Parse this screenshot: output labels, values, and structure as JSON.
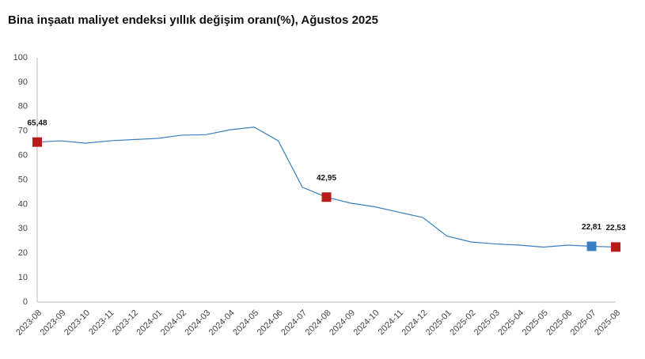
{
  "chart_data": {
    "type": "line",
    "title": "Bina inşaatı maliyet endeksi yıllık değişim oranı(%), Ağustos 2025",
    "categories": [
      "2023-08",
      "2023-09",
      "2023-10",
      "2023-11",
      "2023-12",
      "2024-01",
      "2024-02",
      "2024-03",
      "2024-04",
      "2024-05",
      "2024-06",
      "2024-07",
      "2024-08",
      "2024-09",
      "2024-10",
      "2024-11",
      "2024-12",
      "2025-01",
      "2025-02",
      "2025-03",
      "2025-04",
      "2025-05",
      "2025-06",
      "2025-07",
      "2025-08"
    ],
    "series": [
      {
        "name": "Yıllık değişim",
        "color": "#3a7fc1",
        "values": [
          65.48,
          66.0,
          65.0,
          66.0,
          66.5,
          67.0,
          68.3,
          68.5,
          70.5,
          71.6,
          66.0,
          47.0,
          42.95,
          40.5,
          39.0,
          36.8,
          34.6,
          27.0,
          24.6,
          23.8,
          23.3,
          22.5,
          23.3,
          22.81,
          22.53
        ],
        "value_labels": [
          "65,48",
          null,
          null,
          null,
          null,
          null,
          null,
          null,
          null,
          null,
          null,
          null,
          "42,95",
          null,
          null,
          null,
          null,
          null,
          null,
          null,
          null,
          null,
          null,
          "22,81",
          "22,53"
        ],
        "marker_colors": [
          "#b71c1c",
          null,
          null,
          null,
          null,
          null,
          null,
          null,
          null,
          null,
          null,
          null,
          "#b71c1c",
          null,
          null,
          null,
          null,
          null,
          null,
          null,
          null,
          null,
          null,
          "#3a7fc1",
          "#b71c1c"
        ]
      }
    ],
    "ylim": [
      0,
      100
    ],
    "yticks": [
      0,
      10,
      20,
      30,
      40,
      50,
      60,
      70,
      80,
      90,
      100
    ],
    "grid": false
  }
}
